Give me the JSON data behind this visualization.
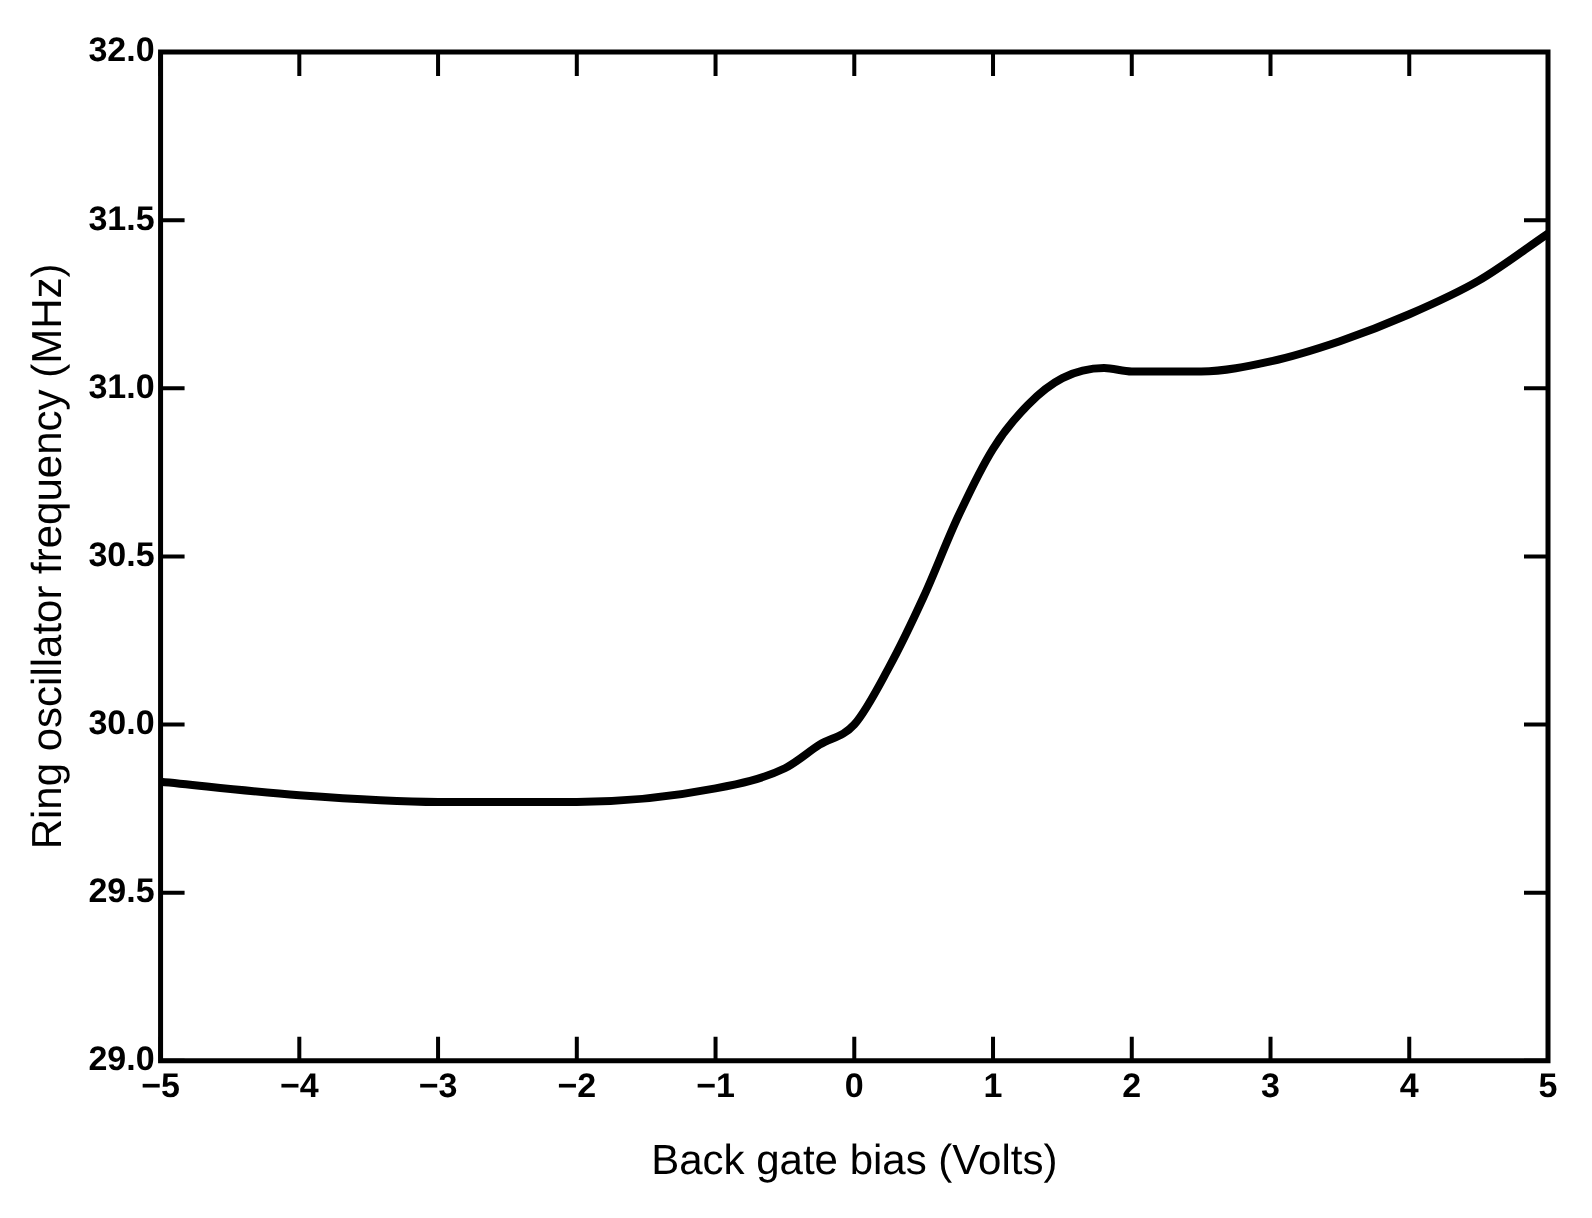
{
  "chart_data": {
    "type": "line",
    "xlabel": "Back gate bias (Volts)",
    "ylabel": "Ring oscillator frequency (MHz)",
    "x": [
      -5,
      -4,
      -3,
      -2,
      -1,
      -0.5,
      -0.25,
      0,
      0.25,
      0.5,
      0.75,
      1,
      1.25,
      1.5,
      1.8,
      2,
      2.5,
      3,
      3.5,
      4,
      4.5,
      5
    ],
    "series": [
      {
        "color": "#000000",
        "values": [
          29.83,
          29.79,
          29.77,
          29.77,
          29.81,
          29.87,
          29.94,
          30.0,
          30.17,
          30.38,
          30.62,
          30.82,
          30.95,
          31.03,
          31.06,
          31.05,
          31.05,
          31.08,
          31.14,
          31.22,
          31.32,
          31.46
        ]
      }
    ],
    "xlim": [
      -5,
      5
    ],
    "xticks": [
      -5,
      -4,
      -3,
      -2,
      -1,
      0,
      1,
      2,
      3,
      4,
      5
    ],
    "ylim": [
      29,
      32
    ],
    "yticks": [
      {
        "value": 29,
        "label": "29.0"
      },
      {
        "value": 29.5,
        "label": "29.5"
      },
      {
        "value": 30,
        "label": "30.0"
      },
      {
        "value": 30.5,
        "label": "30.5"
      },
      {
        "value": 31,
        "label": "31.0"
      },
      {
        "value": 31.5,
        "label": "31.5"
      },
      {
        "value": 32,
        "label": "32.0"
      }
    ],
    "grid": false,
    "legend": false,
    "marker": "none",
    "line_style": "solid"
  }
}
